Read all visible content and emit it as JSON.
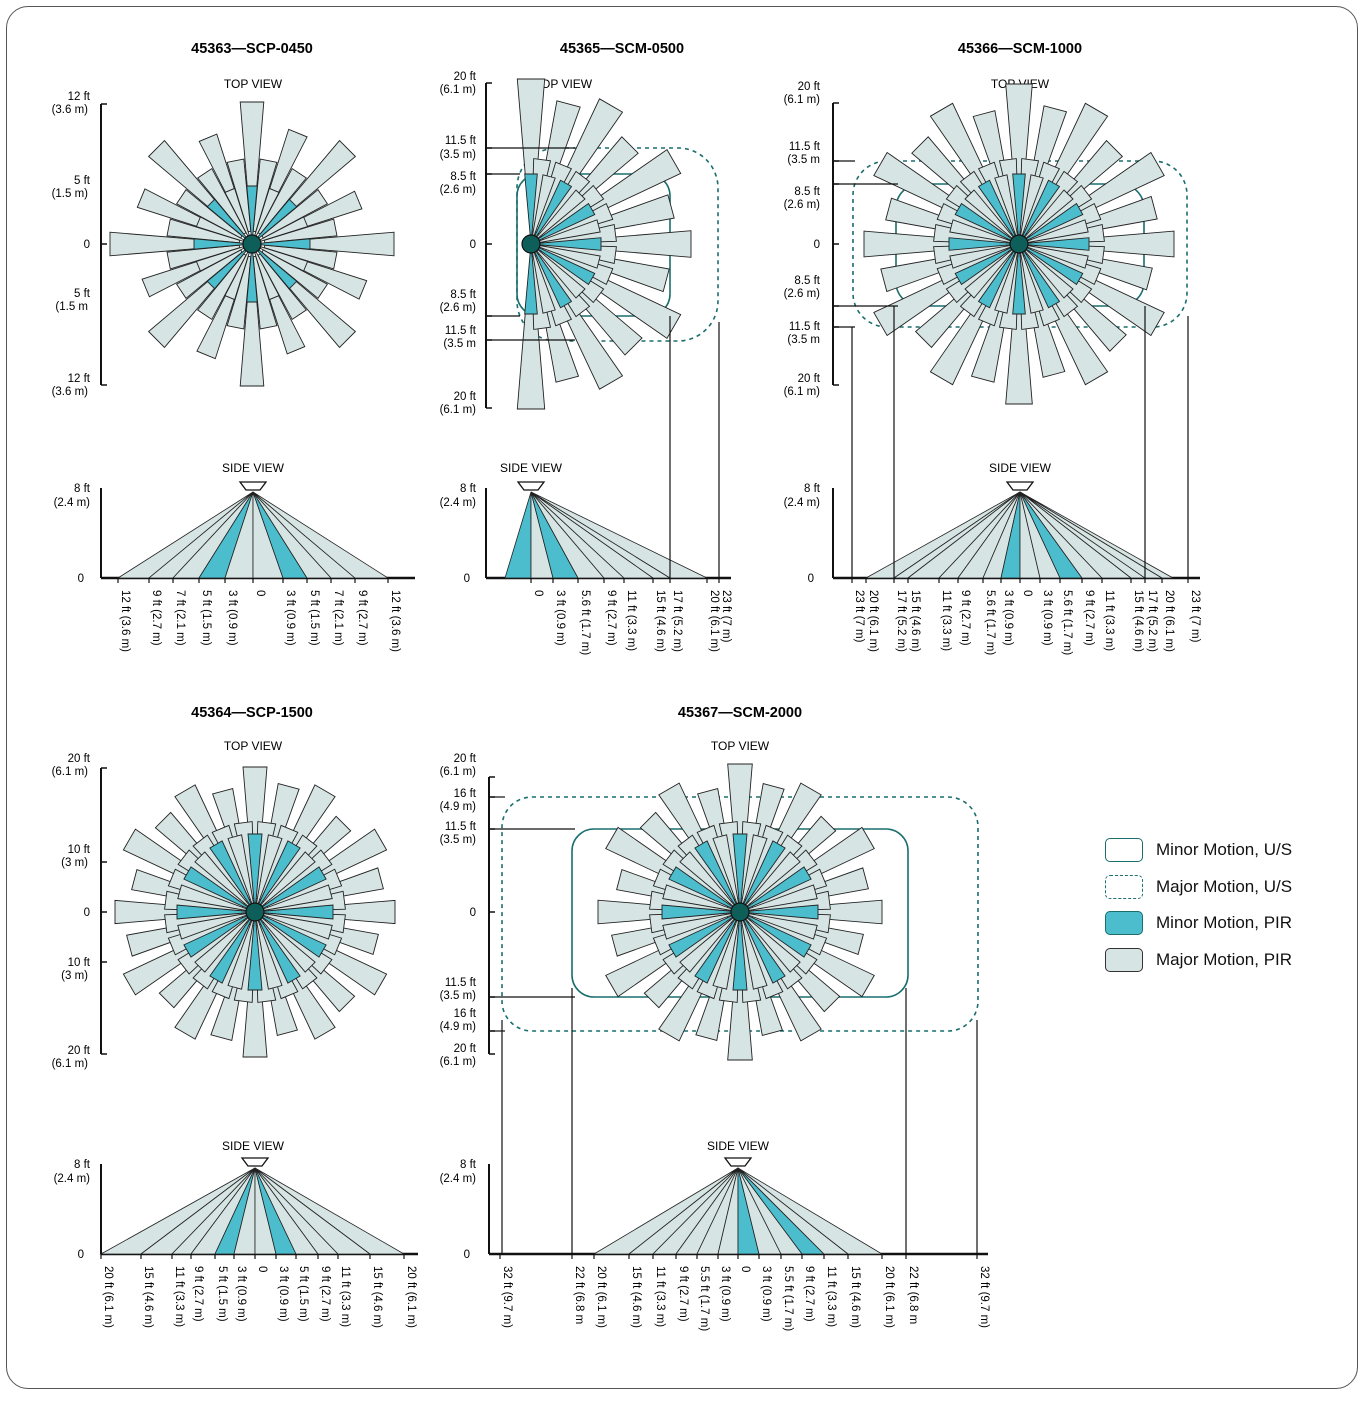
{
  "colors": {
    "minor_pir": "#4bbdcd",
    "major_pir": "#d6e4e3",
    "us_outline": "#1a6e6e",
    "sensor": "#0e5f5a",
    "ink": "#111111"
  },
  "legend": [
    {
      "key": "minor-us",
      "label": "Minor Motion, U/S"
    },
    {
      "key": "major-us",
      "label": "Major Motion, U/S"
    },
    {
      "key": "minor-pir",
      "label": "Minor Motion, PIR"
    },
    {
      "key": "major-pir",
      "label": "Major Motion, PIR"
    }
  ],
  "view_labels": {
    "top": "TOP VIEW",
    "side": "SIDE VIEW"
  },
  "models": [
    {
      "id": "scp0450",
      "title": "45363—SCP-0450",
      "top_labels": [
        "12 ft",
        "(3.6 m)",
        "5 ft",
        "(1.5 m)",
        "0",
        "5 ft",
        "(1.5 m",
        "12 ft",
        "(3.6 m)"
      ],
      "side_height": [
        "8 ft",
        "(2.4 m)",
        "0"
      ],
      "side_ticks": [
        "12 ft (3.6 m)",
        "9 ft (2.7 m)",
        "7 ft (2.1 m)",
        "5 ft (1.5 m)",
        "3 ft (0.9 m)",
        "0",
        "3 ft (0.9 m)",
        "5 ft (1.5 m)",
        "7 ft (2.1 m)",
        "9 ft (2.7 m)",
        "12 ft (3.6 m)"
      ]
    },
    {
      "id": "scm0500",
      "title": "45365—SCM-0500",
      "top_labels": [
        "20 ft",
        "(6.1 m)",
        "11.5 ft",
        "(3.5 m)",
        "8.5 ft",
        "(2.6 m)",
        "0",
        "8.5 ft",
        "(2.6 m)",
        "11.5 ft",
        "(3.5 m",
        "20 ft",
        "(6.1 m)"
      ],
      "side_height": [
        "8 ft",
        "(2.4 m)",
        "0"
      ],
      "side_ticks": [
        "0",
        "3 ft (0.9 m)",
        "5.6 ft (1.7 m)",
        "9 ft (2.7 m)",
        "11 ft (3.3 m)",
        "15 ft (4.6 m)",
        "17 ft (5.2 m)",
        "20 ft (6.1 m)",
        "23 ft (7 m)"
      ]
    },
    {
      "id": "scm1000",
      "title": "45366—SCM-1000",
      "top_labels": [
        "20 ft",
        "(6.1 m)",
        "11.5 ft",
        "(3.5 m",
        "8.5 ft",
        "(2.6 m)",
        "0",
        "8.5 ft",
        "(2.6 m)",
        "11.5 ft",
        "(3.5 m",
        "20 ft",
        "(6.1 m)"
      ],
      "side_height": [
        "8 ft",
        "(2.4 m)",
        "0"
      ],
      "side_ticks": [
        "23 ft (7 m)",
        "20 ft (6.1 m)",
        "17 ft (5.2 m)",
        "15 ft (4.6 m)",
        "11 ft (3.3 m)",
        "9 ft (2.7 m)",
        "5.6 ft (1.7 m)",
        "3 ft (0.9 m)",
        "0",
        "3 ft (0.9 m)",
        "5.6 ft (1.7 m)",
        "9 ft (2.7 m)",
        "11 ft (3.3 m)",
        "15 ft (4.6 m)",
        "17 ft (5.2 m)",
        "20 ft (6.1 m)",
        "23 ft (7 m)"
      ]
    },
    {
      "id": "scp1500",
      "title": "45364—SCP-1500",
      "top_labels": [
        "20 ft",
        "(6.1 m)",
        "10 ft",
        "(3 m)",
        "0",
        "10 ft",
        "(3 m)",
        "20 ft",
        "(6.1 m)"
      ],
      "side_height": [
        "8 ft",
        "(2.4 m)",
        "0"
      ],
      "side_ticks": [
        "20 ft (6.1 m)",
        "15 ft (4.6 m)",
        "11 ft (3.3 m)",
        "9 ft (2.7 m)",
        "5 ft (1.5 m)",
        "3 ft (0.9 m)",
        "0",
        "3 ft (0.9 m)",
        "5 ft (1.5 m)",
        "9 ft (2.7 m)",
        "11 ft (3.3 m)",
        "15 ft (4.6 m)",
        "20 ft (6.1 m)"
      ]
    },
    {
      "id": "scm2000",
      "title": "45367—SCM-2000",
      "top_labels": [
        "20 ft",
        "(6.1 m)",
        "16 ft",
        "(4.9 m)",
        "11.5 ft",
        "(3.5 m)",
        "0",
        "11.5 ft",
        "(3.5 m)",
        "16 ft",
        "(4.9 m)",
        "20 ft",
        "(6.1 m)"
      ],
      "side_height": [
        "8 ft",
        "(2.4 m)",
        "0"
      ],
      "side_ticks": [
        "32 ft (9.7 m)",
        "22 ft (6.8 m",
        "20 ft (6.1 m)",
        "15 ft (4.6 m)",
        "11 ft (3.3 m)",
        "9 ft (2.7 m)",
        "5.5 ft (1.7 m)",
        "3 ft (0.9 m)",
        "0",
        "3 ft (0.9 m)",
        "5.5 ft (1.7 m)",
        "9 ft (2.7 m)",
        "11 ft (3.3 m)",
        "15 ft (4.6 m)",
        "20 ft (6.1 m)",
        "22 ft (6.8 m",
        "32 ft (9.7 m)"
      ]
    }
  ]
}
